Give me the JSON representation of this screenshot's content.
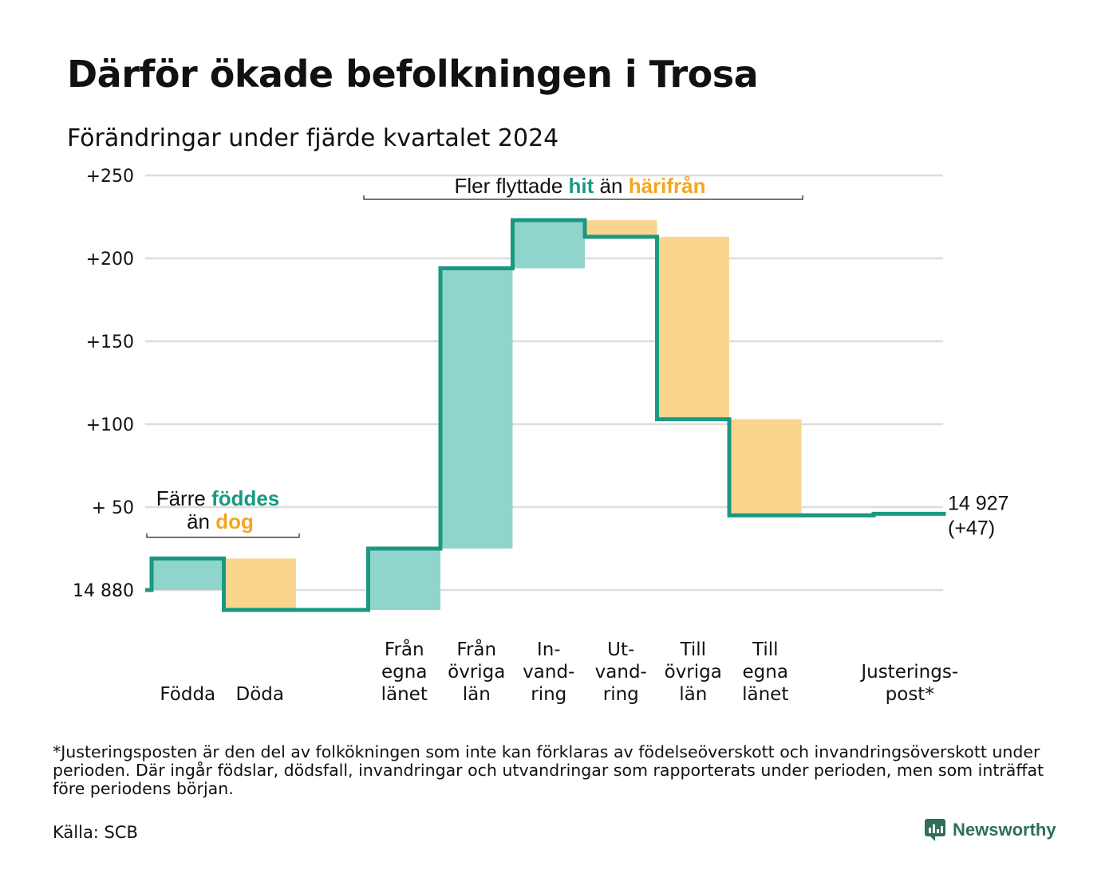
{
  "header": {
    "title": "Därför ökade befolkningen i Trosa",
    "subtitle": "Förändringar under fjärde kvartalet 2024"
  },
  "colors": {
    "increase": "#8fd5cc",
    "decrease": "#f9d58e",
    "line": "#1a9882",
    "teal_text": "#1a9882",
    "orange_text": "#f3a622",
    "grid": "#dddddd"
  },
  "chart_data": {
    "type": "waterfall",
    "start_value": 14880,
    "start_label": "14 880",
    "end_label": "14 927",
    "end_change_label": "(+47)",
    "ylim": [
      -13,
      250
    ],
    "y_ticks": [
      {
        "value": 250,
        "label": "+250"
      },
      {
        "value": 200,
        "label": "+200"
      },
      {
        "value": 150,
        "label": "+150"
      },
      {
        "value": 100,
        "label": "+100"
      },
      {
        "value": 50,
        "label": "+ 50"
      },
      {
        "value": 0,
        "label": "14 880"
      }
    ],
    "steps": [
      {
        "label": "Födda",
        "change": 19
      },
      {
        "label": "Döda",
        "change": -31
      },
      {
        "label": "",
        "change": 0
      },
      {
        "label": "Från\negna\nlänet",
        "change": 37
      },
      {
        "label": "Från\növriga\nlän",
        "change": 169
      },
      {
        "label": "In-\nvand-\nring",
        "change": 29
      },
      {
        "label": "Ut-\nvand-\nring",
        "change": -10
      },
      {
        "label": "Till\növriga\nlän",
        "change": -110
      },
      {
        "label": "Till\negna\nlänet",
        "change": -58
      },
      {
        "label": "",
        "change": 0
      },
      {
        "label": "Justerings-\npost*",
        "change": 1
      }
    ],
    "annotations": [
      {
        "parts": [
          {
            "text": "Färre ",
            "tone": "plain"
          },
          {
            "text": "föddes",
            "tone": "increase"
          }
        ],
        "parts2": [
          {
            "text": "än ",
            "tone": "plain"
          },
          {
            "text": "dog",
            "tone": "decrease"
          }
        ]
      },
      {
        "parts": [
          {
            "text": "Fler flyttade ",
            "tone": "plain"
          },
          {
            "text": "hit",
            "tone": "increase"
          },
          {
            "text": " än ",
            "tone": "plain"
          },
          {
            "text": "härifrån",
            "tone": "decrease"
          }
        ]
      }
    ]
  },
  "footnote": "*Justeringsposten är den del av folkökningen som inte kan förklaras av födelseöverskott och invandringsöverskott under perioden. Där ingår födslar, dödsfall, invandringar och utvandringar som rapporterats under perioden, men som inträffat före periodens början.",
  "source": "Källa: SCB",
  "brand": {
    "name": "Newsworthy",
    "icon": "newsworthy-logo-icon"
  }
}
